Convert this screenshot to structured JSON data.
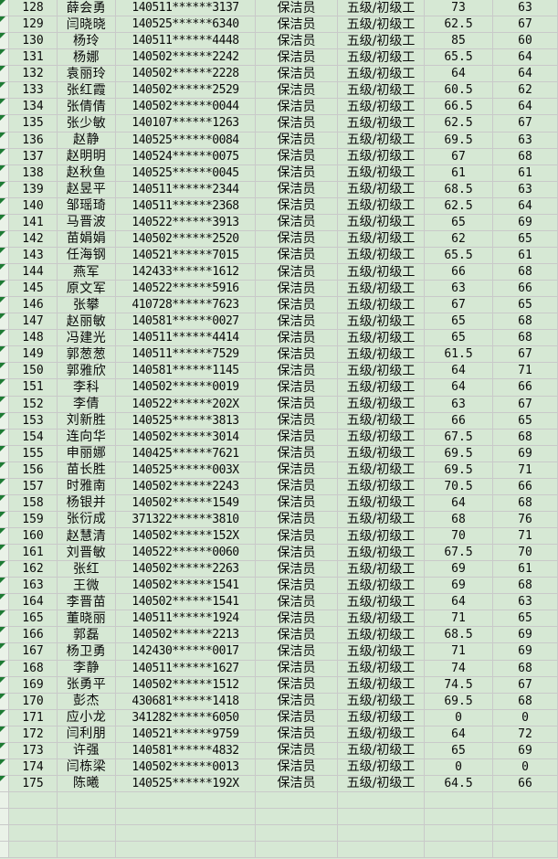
{
  "app": {
    "type": "spreadsheet-grid",
    "description": "Employee assessment score list, rows 128-175"
  },
  "colors": {
    "cell_bg": "#d6e8d4",
    "marker_col_bg": "#eaf2e8",
    "gridline": "#c9c9c9",
    "error_triangle": "#1e7b34",
    "text": "#0a0a0a"
  },
  "icons": {
    "error_indicator": "error-indicator-icon"
  },
  "table": {
    "column_fields": [
      "num",
      "name",
      "id",
      "job",
      "level",
      "score1",
      "score2"
    ],
    "empty_rows": 4,
    "rows": [
      {
        "num": "128",
        "name": "薛会勇",
        "id": "140511******3137",
        "job": "保洁员",
        "level": "五级/初级工",
        "score1": "73",
        "score2": "63"
      },
      {
        "num": "129",
        "name": "闫晓晓",
        "id": "140525******6340",
        "job": "保洁员",
        "level": "五级/初级工",
        "score1": "62.5",
        "score2": "67"
      },
      {
        "num": "130",
        "name": "杨玲",
        "id": "140511******4448",
        "job": "保洁员",
        "level": "五级/初级工",
        "score1": "85",
        "score2": "60"
      },
      {
        "num": "131",
        "name": "杨娜",
        "id": "140502******2242",
        "job": "保洁员",
        "level": "五级/初级工",
        "score1": "65.5",
        "score2": "64"
      },
      {
        "num": "132",
        "name": "袁丽玲",
        "id": "140502******2228",
        "job": "保洁员",
        "level": "五级/初级工",
        "score1": "64",
        "score2": "64"
      },
      {
        "num": "133",
        "name": "张红霞",
        "id": "140502******2529",
        "job": "保洁员",
        "level": "五级/初级工",
        "score1": "60.5",
        "score2": "62"
      },
      {
        "num": "134",
        "name": "张倩倩",
        "id": "140502******0044",
        "job": "保洁员",
        "level": "五级/初级工",
        "score1": "66.5",
        "score2": "64"
      },
      {
        "num": "135",
        "name": "张少敏",
        "id": "140107******1263",
        "job": "保洁员",
        "level": "五级/初级工",
        "score1": "62.5",
        "score2": "67"
      },
      {
        "num": "136",
        "name": "赵静",
        "id": "140525******0084",
        "job": "保洁员",
        "level": "五级/初级工",
        "score1": "69.5",
        "score2": "63"
      },
      {
        "num": "137",
        "name": "赵明明",
        "id": "140524******0075",
        "job": "保洁员",
        "level": "五级/初级工",
        "score1": "67",
        "score2": "68"
      },
      {
        "num": "138",
        "name": "赵秋鱼",
        "id": "140525******0045",
        "job": "保洁员",
        "level": "五级/初级工",
        "score1": "61",
        "score2": "61"
      },
      {
        "num": "139",
        "name": "赵昱平",
        "id": "140511******2344",
        "job": "保洁员",
        "level": "五级/初级工",
        "score1": "68.5",
        "score2": "63"
      },
      {
        "num": "140",
        "name": "邹瑶琦",
        "id": "140511******2368",
        "job": "保洁员",
        "level": "五级/初级工",
        "score1": "62.5",
        "score2": "64"
      },
      {
        "num": "141",
        "name": "马晋波",
        "id": "140522******3913",
        "job": "保洁员",
        "level": "五级/初级工",
        "score1": "65",
        "score2": "69"
      },
      {
        "num": "142",
        "name": "苗娟娟",
        "id": "140502******2520",
        "job": "保洁员",
        "level": "五级/初级工",
        "score1": "62",
        "score2": "65"
      },
      {
        "num": "143",
        "name": "任海钢",
        "id": "140521******7015",
        "job": "保洁员",
        "level": "五级/初级工",
        "score1": "65.5",
        "score2": "61"
      },
      {
        "num": "144",
        "name": "燕军",
        "id": "142433******1612",
        "job": "保洁员",
        "level": "五级/初级工",
        "score1": "66",
        "score2": "68"
      },
      {
        "num": "145",
        "name": "原文军",
        "id": "140522******5916",
        "job": "保洁员",
        "level": "五级/初级工",
        "score1": "63",
        "score2": "66"
      },
      {
        "num": "146",
        "name": "张攀",
        "id": "410728******7623",
        "job": "保洁员",
        "level": "五级/初级工",
        "score1": "67",
        "score2": "65"
      },
      {
        "num": "147",
        "name": "赵丽敏",
        "id": "140581******0027",
        "job": "保洁员",
        "level": "五级/初级工",
        "score1": "65",
        "score2": "68"
      },
      {
        "num": "148",
        "name": "冯建光",
        "id": "140511******4414",
        "job": "保洁员",
        "level": "五级/初级工",
        "score1": "65",
        "score2": "68"
      },
      {
        "num": "149",
        "name": "郭葱葱",
        "id": "140511******7529",
        "job": "保洁员",
        "level": "五级/初级工",
        "score1": "61.5",
        "score2": "67"
      },
      {
        "num": "150",
        "name": "郭雅欣",
        "id": "140581******1145",
        "job": "保洁员",
        "level": "五级/初级工",
        "score1": "64",
        "score2": "71"
      },
      {
        "num": "151",
        "name": "李科",
        "id": "140502******0019",
        "job": "保洁员",
        "level": "五级/初级工",
        "score1": "64",
        "score2": "66"
      },
      {
        "num": "152",
        "name": "李倩",
        "id": "140522******202X",
        "job": "保洁员",
        "level": "五级/初级工",
        "score1": "63",
        "score2": "67"
      },
      {
        "num": "153",
        "name": "刘新胜",
        "id": "140525******3813",
        "job": "保洁员",
        "level": "五级/初级工",
        "score1": "66",
        "score2": "65"
      },
      {
        "num": "154",
        "name": "连向华",
        "id": "140502******3014",
        "job": "保洁员",
        "level": "五级/初级工",
        "score1": "67.5",
        "score2": "68"
      },
      {
        "num": "155",
        "name": "申丽娜",
        "id": "140425******7621",
        "job": "保洁员",
        "level": "五级/初级工",
        "score1": "69.5",
        "score2": "69"
      },
      {
        "num": "156",
        "name": "苗长胜",
        "id": "140525******003X",
        "job": "保洁员",
        "level": "五级/初级工",
        "score1": "69.5",
        "score2": "71"
      },
      {
        "num": "157",
        "name": "时雅南",
        "id": "140502******2243",
        "job": "保洁员",
        "level": "五级/初级工",
        "score1": "70.5",
        "score2": "66"
      },
      {
        "num": "158",
        "name": "杨银并",
        "id": "140502******1549",
        "job": "保洁员",
        "level": "五级/初级工",
        "score1": "64",
        "score2": "68"
      },
      {
        "num": "159",
        "name": "张衍成",
        "id": "371322******3810",
        "job": "保洁员",
        "level": "五级/初级工",
        "score1": "68",
        "score2": "76"
      },
      {
        "num": "160",
        "name": "赵慧清",
        "id": "140502******152X",
        "job": "保洁员",
        "level": "五级/初级工",
        "score1": "70",
        "score2": "71"
      },
      {
        "num": "161",
        "name": "刘晋敏",
        "id": "140522******0060",
        "job": "保洁员",
        "level": "五级/初级工",
        "score1": "67.5",
        "score2": "70"
      },
      {
        "num": "162",
        "name": "张红",
        "id": "140502******2263",
        "job": "保洁员",
        "level": "五级/初级工",
        "score1": "69",
        "score2": "61"
      },
      {
        "num": "163",
        "name": "王微",
        "id": "140502******1541",
        "job": "保洁员",
        "level": "五级/初级工",
        "score1": "69",
        "score2": "68"
      },
      {
        "num": "164",
        "name": "李晋苗",
        "id": "140502******1541",
        "job": "保洁员",
        "level": "五级/初级工",
        "score1": "64",
        "score2": "63"
      },
      {
        "num": "165",
        "name": "董晓丽",
        "id": "140511******1924",
        "job": "保洁员",
        "level": "五级/初级工",
        "score1": "71",
        "score2": "65"
      },
      {
        "num": "166",
        "name": "郭磊",
        "id": "140502******2213",
        "job": "保洁员",
        "level": "五级/初级工",
        "score1": "68.5",
        "score2": "69"
      },
      {
        "num": "167",
        "name": "杨卫勇",
        "id": "142430******0017",
        "job": "保洁员",
        "level": "五级/初级工",
        "score1": "71",
        "score2": "69"
      },
      {
        "num": "168",
        "name": "李静",
        "id": "140511******1627",
        "job": "保洁员",
        "level": "五级/初级工",
        "score1": "74",
        "score2": "68"
      },
      {
        "num": "169",
        "name": "张勇平",
        "id": "140502******1512",
        "job": "保洁员",
        "level": "五级/初级工",
        "score1": "74.5",
        "score2": "67"
      },
      {
        "num": "170",
        "name": "彭杰",
        "id": "430681******1418",
        "job": "保洁员",
        "level": "五级/初级工",
        "score1": "69.5",
        "score2": "68"
      },
      {
        "num": "171",
        "name": "应小龙",
        "id": "341282******6050",
        "job": "保洁员",
        "level": "五级/初级工",
        "score1": "0",
        "score2": "0"
      },
      {
        "num": "172",
        "name": "闫利朋",
        "id": "140521******9759",
        "job": "保洁员",
        "level": "五级/初级工",
        "score1": "64",
        "score2": "72"
      },
      {
        "num": "173",
        "name": "许强",
        "id": "140581******4832",
        "job": "保洁员",
        "level": "五级/初级工",
        "score1": "65",
        "score2": "69"
      },
      {
        "num": "174",
        "name": "闫栋梁",
        "id": "140502******0013",
        "job": "保洁员",
        "level": "五级/初级工",
        "score1": "0",
        "score2": "0"
      },
      {
        "num": "175",
        "name": "陈曦",
        "id": "140525******192X",
        "job": "保洁员",
        "level": "五级/初级工",
        "score1": "64.5",
        "score2": "66"
      }
    ]
  }
}
